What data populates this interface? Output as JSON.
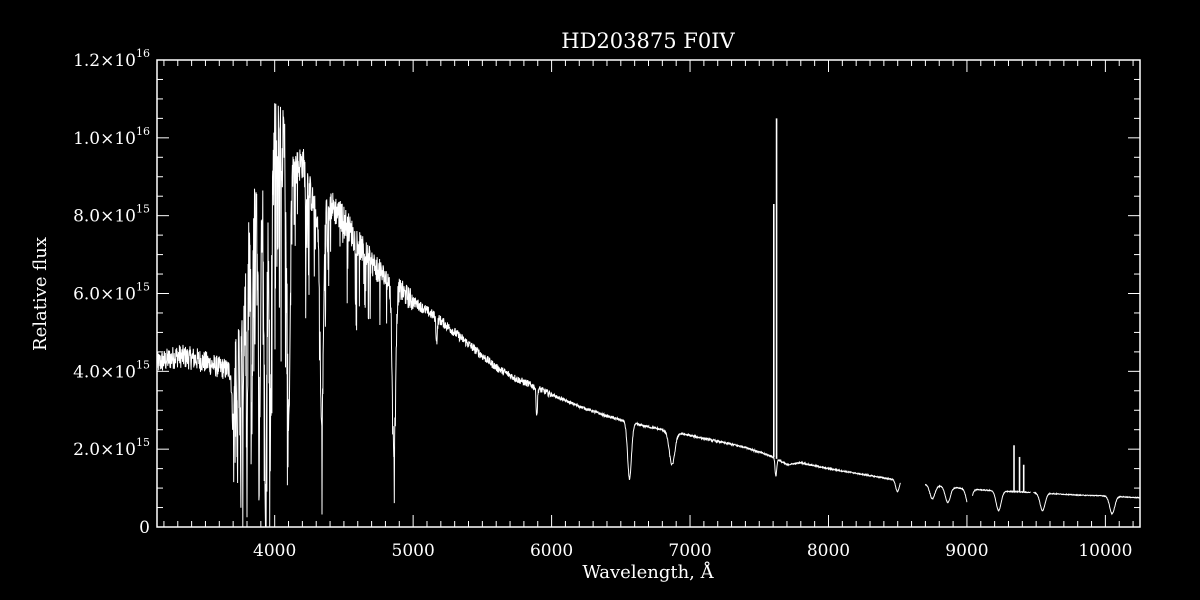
{
  "chart_data": {
    "type": "line",
    "title": "HD203875   F0IV",
    "xlabel": "Wavelength, Å",
    "ylabel": "Relative flux",
    "xlim": [
      3150,
      10250
    ],
    "ylim": [
      0,
      1.2e+16
    ],
    "grid": false,
    "legend": "none",
    "x_ticks": [
      {
        "value": 4000,
        "label": "4000"
      },
      {
        "value": 5000,
        "label": "5000"
      },
      {
        "value": 6000,
        "label": "6000"
      },
      {
        "value": 7000,
        "label": "7000"
      },
      {
        "value": 8000,
        "label": "8000"
      },
      {
        "value": 9000,
        "label": "9000"
      },
      {
        "value": 10000,
        "label": "10000"
      }
    ],
    "y_ticks": [
      {
        "value": 0,
        "mantissa": "0",
        "exp": ""
      },
      {
        "value": 2000000000000000.0,
        "mantissa": "2.0×10",
        "exp": "15"
      },
      {
        "value": 4000000000000000.0,
        "mantissa": "4.0×10",
        "exp": "15"
      },
      {
        "value": 6000000000000000.0,
        "mantissa": "6.0×10",
        "exp": "15"
      },
      {
        "value": 8000000000000000.0,
        "mantissa": "8.0×10",
        "exp": "15"
      },
      {
        "value": 1e+16,
        "mantissa": "1.0×10",
        "exp": "16"
      },
      {
        "value": 1.2e+16,
        "mantissa": "1.2×10",
        "exp": "16"
      }
    ],
    "colors": {
      "background": "#000000",
      "line": "#ffffff"
    },
    "series": [
      {
        "x": [
          3150,
          3300,
          3450,
          3600,
          3700,
          3750,
          3850,
          3950,
          4000,
          4050,
          4150,
          4200,
          4300,
          4400,
          4500,
          4600,
          4700,
          4800,
          4900,
          5000,
          5200,
          5400,
          5600,
          5750,
          5850,
          6000,
          6200,
          6400,
          6600,
          6800,
          7000,
          7200,
          7400,
          7600,
          7700,
          7800,
          8000,
          8200,
          8400,
          8500,
          8700,
          8800,
          9000,
          9200,
          9400,
          9600,
          9800,
          10000,
          10250
        ],
        "y": [
          4200000000000000.0,
          4400000000000000.0,
          4300000000000000.0,
          4100000000000000.0,
          4000000000000000.0,
          6000000000000000.0,
          8000000000000000.0,
          8500000000000000.0,
          9800000000000000.0,
          9500000000000000.0,
          9200000000000000.0,
          9400000000000000.0,
          8000000000000000.0,
          8300000000000000.0,
          7900000000000000.0,
          7300000000000000.0,
          6800000000000000.0,
          6400000000000000.0,
          6100000000000000.0,
          5800000000000000.0,
          5300000000000000.0,
          4700000000000000.0,
          4100000000000000.0,
          3800000000000000.0,
          3650000000000000.0,
          3400000000000000.0,
          3100000000000000.0,
          2850000000000000.0,
          2650000000000000.0,
          2500000000000000.0,
          2350000000000000.0,
          2200000000000000.0,
          2050000000000000.0,
          1800000000000000.0,
          1600000000000000.0,
          1650000000000000.0,
          1500000000000000.0,
          1380000000000000.0,
          1260000000000000.0,
          1200000000000000.0,
          1100000000000000.0,
          1050000000000000.0,
          980000000000000.0,
          930000000000000.0,
          900000000000000.0,
          860000000000000.0,
          820000000000000.0,
          800000000000000.0,
          750000000000000.0
        ]
      }
    ],
    "gaps": [
      [
        8520,
        8700
      ],
      [
        9000,
        9040
      ],
      [
        9460,
        9480
      ]
    ],
    "absorption_lines": [
      {
        "x": 3700,
        "depth": 1400000000000000.0,
        "width": 8
      },
      {
        "x": 3730,
        "depth": 3600000000000000.0,
        "width": 5
      },
      {
        "x": 3750,
        "depth": 3200000000000000.0,
        "width": 5
      },
      {
        "x": 3770,
        "depth": 3600000000000000.0,
        "width": 5
      },
      {
        "x": 3800,
        "depth": 4600000000000000.0,
        "width": 5
      },
      {
        "x": 3835,
        "depth": 5200000000000000.0,
        "width": 6
      },
      {
        "x": 3889,
        "depth": 5500000000000000.0,
        "width": 7
      },
      {
        "x": 3934,
        "depth": 7300000000000000.0,
        "width": 9
      },
      {
        "x": 3969,
        "depth": 6600000000000000.0,
        "width": 8
      },
      {
        "x": 4101,
        "depth": 6600000000000000.0,
        "width": 10
      },
      {
        "x": 4226,
        "depth": 1600000000000000.0,
        "width": 3
      },
      {
        "x": 4340,
        "depth": 5600000000000000.0,
        "width": 12
      },
      {
        "x": 4383,
        "depth": 1200000000000000.0,
        "width": 3
      },
      {
        "x": 4861,
        "depth": 4200000000000000.0,
        "width": 12
      },
      {
        "x": 5170,
        "depth": 600000000000000.0,
        "width": 5
      },
      {
        "x": 5893,
        "depth": 700000000000000.0,
        "width": 5
      },
      {
        "x": 6563,
        "depth": 1450000000000000.0,
        "width": 14
      },
      {
        "x": 6870,
        "depth": 850000000000000.0,
        "width": 20
      },
      {
        "x": 7620,
        "depth": 450000000000000.0,
        "width": 6
      },
      {
        "x": 8498,
        "depth": 300000000000000.0,
        "width": 12
      },
      {
        "x": 8750,
        "depth": 350000000000000.0,
        "width": 18
      },
      {
        "x": 8862,
        "depth": 400000000000000.0,
        "width": 18
      },
      {
        "x": 9014,
        "depth": 450000000000000.0,
        "width": 18
      },
      {
        "x": 9229,
        "depth": 500000000000000.0,
        "width": 18
      },
      {
        "x": 9546,
        "depth": 450000000000000.0,
        "width": 18
      },
      {
        "x": 10049,
        "depth": 450000000000000.0,
        "width": 18
      }
    ],
    "emission_spikes": [
      {
        "x": 7605,
        "height": 8300000000000000.0
      },
      {
        "x": 7625,
        "height": 1.05e+16
      },
      {
        "x": 9340,
        "height": 2100000000000000.0
      },
      {
        "x": 9380,
        "height": 1800000000000000.0
      },
      {
        "x": 9410,
        "height": 1600000000000000.0
      }
    ]
  }
}
